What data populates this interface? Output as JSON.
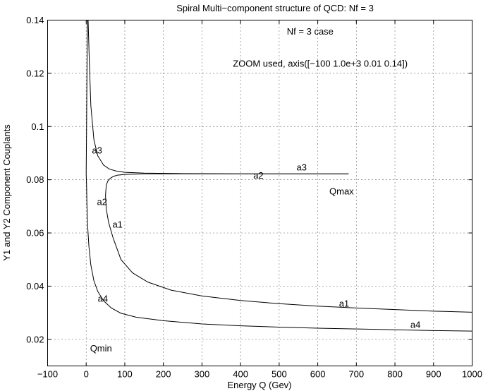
{
  "chart_data": {
    "type": "line",
    "title": "Spiral Multi−component structure of QCD: Nf = 3",
    "xlabel": "Energy Q (Gev)",
    "ylabel": "Y1 and Y2 Component Couplants",
    "xlim": [
      -100,
      1000
    ],
    "ylim": [
      0.01,
      0.14
    ],
    "xticks": [
      "−100",
      "0",
      "100",
      "200",
      "300",
      "400",
      "500",
      "600",
      "700",
      "800",
      "900",
      "1000"
    ],
    "yticks": [
      "0.02",
      "0.04",
      "0.06",
      "0.08",
      "0.1",
      "0.12",
      "0.14"
    ],
    "grid": true,
    "series": [
      {
        "name": "a3",
        "x": [
          5,
          8,
          12,
          20,
          30,
          45,
          60,
          80,
          100,
          150,
          250,
          400,
          680
        ],
        "y": [
          0.14,
          0.125,
          0.108,
          0.095,
          0.089,
          0.0855,
          0.084,
          0.0832,
          0.0828,
          0.0825,
          0.0823,
          0.0822,
          0.0822
        ]
      },
      {
        "name": "a2",
        "x": [
          680,
          400,
          250,
          150,
          100,
          80,
          70,
          62,
          56,
          52,
          50,
          52,
          58,
          70
        ],
        "y": [
          0.0822,
          0.0822,
          0.0822,
          0.0822,
          0.082,
          0.0817,
          0.0812,
          0.0805,
          0.0795,
          0.078,
          0.074,
          0.069,
          0.064,
          0.058
        ]
      },
      {
        "name": "a1",
        "x": [
          70,
          90,
          120,
          160,
          220,
          300,
          400,
          500,
          600,
          700,
          800,
          900,
          1000
        ],
        "y": [
          0.058,
          0.05,
          0.045,
          0.0415,
          0.0385,
          0.0363,
          0.0346,
          0.0334,
          0.0325,
          0.0318,
          0.0312,
          0.0306,
          0.0302
        ]
      },
      {
        "name": "a4",
        "x": [
          0,
          1,
          2,
          3,
          5,
          8,
          12,
          20,
          30,
          45,
          60,
          80,
          100,
          150,
          200,
          300,
          400,
          500,
          600,
          700,
          800,
          900,
          1000
        ],
        "y": [
          0.0822,
          0.1,
          0.12,
          0.14,
          0.14,
          0.14,
          0.14,
          0.14,
          0.14,
          0.14,
          0.14,
          0.14,
          0.14,
          0.14,
          0.14,
          0.14,
          0.14,
          0.14,
          0.14,
          0.14,
          0.14,
          0.14,
          0.14
        ]
      },
      {
        "name": "a4",
        "x": [
          0,
          1,
          2,
          4,
          7,
          12,
          20,
          30,
          45,
          65,
          90,
          130,
          200,
          300,
          400,
          500,
          600,
          700,
          800,
          900,
          1000
        ],
        "y": [
          0.0822,
          0.078,
          0.07,
          0.062,
          0.055,
          0.048,
          0.042,
          0.038,
          0.0345,
          0.0318,
          0.0298,
          0.0283,
          0.027,
          0.0258,
          0.0251,
          0.0246,
          0.0242,
          0.0239,
          0.0236,
          0.0233,
          0.0231
        ]
      }
    ],
    "annotations": [
      {
        "text": "Nf = 3 case",
        "x": 520,
        "y": 0.1345
      },
      {
        "text": "ZOOM used, axis([−100  1.0e+3  0.01  0.14])",
        "x": 380,
        "y": 0.1225
      },
      {
        "text": "a3",
        "x": 15,
        "y": 0.0898
      },
      {
        "text": "a3",
        "x": 545,
        "y": 0.0835
      },
      {
        "text": "a2",
        "x": 433,
        "y": 0.0805
      },
      {
        "text": "Qmax",
        "x": 630,
        "y": 0.0745
      },
      {
        "text": "a2",
        "x": 28,
        "y": 0.0705
      },
      {
        "text": "a1",
        "x": 68,
        "y": 0.062
      },
      {
        "text": "a1",
        "x": 655,
        "y": 0.0323
      },
      {
        "text": "a4",
        "x": 30,
        "y": 0.0342
      },
      {
        "text": "a4",
        "x": 840,
        "y": 0.0243
      },
      {
        "text": "Qmin",
        "x": 10,
        "y": 0.0155
      }
    ]
  }
}
